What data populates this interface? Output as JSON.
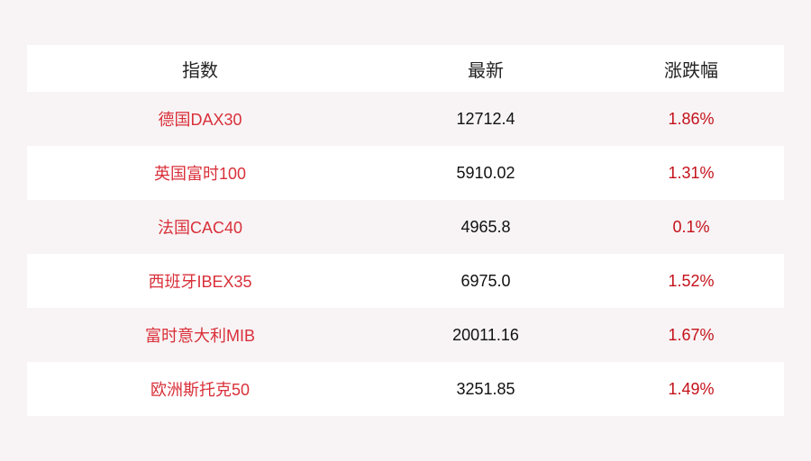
{
  "table": {
    "headers": [
      "指数",
      "最新",
      "涨跌幅"
    ],
    "rows": [
      {
        "name": "德国DAX30",
        "latest": "12712.4",
        "change": "1.86%"
      },
      {
        "name": "英国富时100",
        "latest": "5910.02",
        "change": "1.31%"
      },
      {
        "name": "法国CAC40",
        "latest": "4965.8",
        "change": "0.1%"
      },
      {
        "name": "西班牙IBEX35",
        "latest": "6975.0",
        "change": "1.52%"
      },
      {
        "name": "富时意大利MIB",
        "latest": "20011.16",
        "change": "1.67%"
      },
      {
        "name": "欧洲斯托克50",
        "latest": "3251.85",
        "change": "1.49%"
      }
    ]
  },
  "colors": {
    "name": "#d9303a",
    "change_up": "#c4111a",
    "background": "#f8f4f5"
  }
}
